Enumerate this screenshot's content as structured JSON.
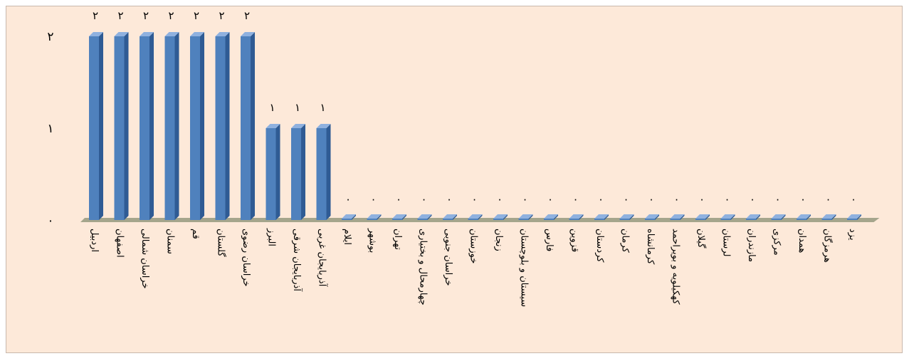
{
  "chart_data": {
    "type": "bar",
    "style": "3d-column",
    "categories": [
      "اردبیل",
      "اصفهان",
      "خراسان شمالی",
      "سمنان",
      "قم",
      "گلستان",
      "خراسان رضوی",
      "البرز",
      "آذربایجان شرقی",
      "آذربایجان غربی",
      "ایلام",
      "بوشهر",
      "تهران",
      "چهارمحال و بختیاری",
      "خراسان جنوبی",
      "خوزستان",
      "زنجان",
      "سیستان و بلوچستان",
      "فارس",
      "قزوین",
      "کردستان",
      "کرمان",
      "کرمانشاه",
      "کهکیلویه و بویراحمد",
      "گیلان",
      "لرستان",
      "مازندران",
      "مرکزی",
      "همدان",
      "هرمزگان",
      "یزد"
    ],
    "values": [
      2,
      2,
      2,
      2,
      2,
      2,
      2,
      1,
      1,
      1,
      0,
      0,
      0,
      0,
      0,
      0,
      0,
      0,
      0,
      0,
      0,
      0,
      0,
      0,
      0,
      0,
      0,
      0,
      0,
      0,
      0
    ],
    "data_labels": [
      "۲",
      "۲",
      "۲",
      "۲",
      "۲",
      "۲",
      "۲",
      "۱",
      "۱",
      "۱",
      "۰",
      "۰",
      "۰",
      "۰",
      "۰",
      "۰",
      "۰",
      "۰",
      "۰",
      "۰",
      "۰",
      "۰",
      "۰",
      "۰",
      "۰",
      "۰",
      "۰",
      "۰",
      "۰",
      "۰",
      "۰"
    ],
    "ylim": [
      0,
      2
    ],
    "yticks": [
      0,
      1,
      2
    ],
    "ytick_labels": [
      "۰",
      "۱",
      "۲"
    ],
    "title": "",
    "xlabel": "",
    "ylabel": "",
    "grid": false,
    "legend": "none",
    "colors": {
      "background": "#fde9d9",
      "bar_front": "#4f81bd",
      "bar_side": "#2f5b94",
      "bar_top": "#8fb1df",
      "floor": "#a5a58c"
    }
  }
}
